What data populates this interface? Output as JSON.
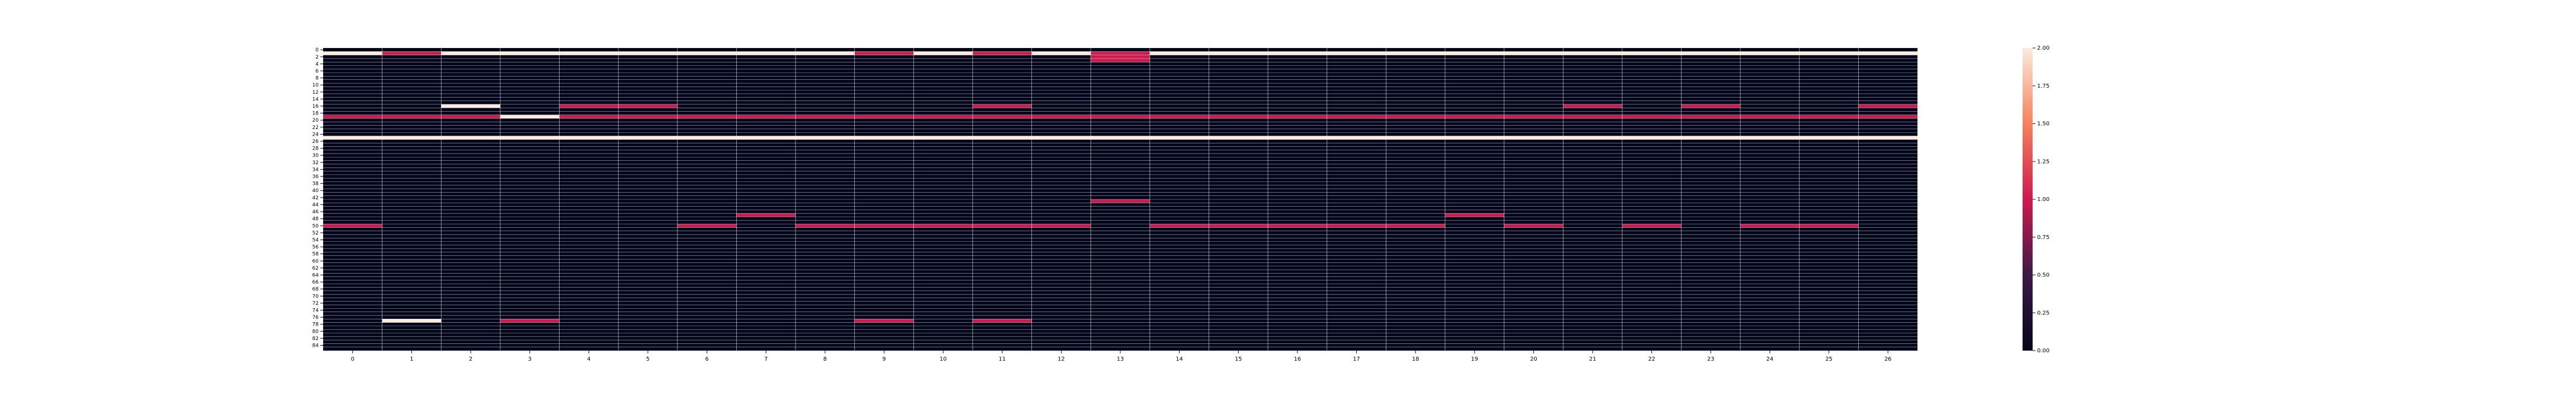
{
  "chart_data": {
    "type": "heatmap",
    "title": "",
    "xlabel": "",
    "ylabel": "",
    "grid": true,
    "legend": "colorbar-right",
    "x_categories": [
      "0",
      "1",
      "2",
      "3",
      "4",
      "5",
      "6",
      "7",
      "8",
      "9",
      "10",
      "11",
      "12",
      "13",
      "14",
      "15",
      "16",
      "17",
      "18",
      "19",
      "20",
      "21",
      "22",
      "23",
      "24",
      "25",
      "26"
    ],
    "y_tick_labels": [
      "0",
      "2",
      "4",
      "6",
      "8",
      "10",
      "12",
      "14",
      "16",
      "18",
      "20",
      "22",
      "24",
      "26",
      "28",
      "30",
      "32",
      "34",
      "36",
      "38",
      "40",
      "42",
      "44",
      "46",
      "48",
      "50",
      "52",
      "54",
      "56",
      "58",
      "60",
      "62",
      "64",
      "66",
      "68",
      "70",
      "72",
      "74",
      "76",
      "78",
      "80",
      "82",
      "84"
    ],
    "n_rows": 86,
    "vmin": 0,
    "vmax": 2,
    "colorbar_ticks": [
      "0.00",
      "0.25",
      "0.50",
      "0.75",
      "1.00",
      "1.25",
      "1.50",
      "1.75",
      "2.00"
    ],
    "colorbar_tick_values": [
      0,
      0.25,
      0.5,
      0.75,
      1.0,
      1.25,
      1.5,
      1.75,
      2.0
    ],
    "colors": {
      "low": "#03051a",
      "mid": "#cb1b4f",
      "high": "#faebdd",
      "grid": "#ffffff"
    },
    "cells": [
      {
        "row": 1,
        "cols": [
          0,
          2,
          3,
          4,
          5,
          6,
          7,
          8,
          10,
          12,
          14,
          15,
          16,
          17,
          18,
          19,
          20,
          21,
          22,
          23,
          24,
          25,
          26
        ],
        "value": 2
      },
      {
        "row": 1,
        "cols": [
          1,
          9,
          11,
          13
        ],
        "value": 1
      },
      {
        "row": 2,
        "cols": [
          13
        ],
        "value": 1
      },
      {
        "row": 3,
        "cols": [
          13
        ],
        "value": 1
      },
      {
        "row": 16,
        "cols": [
          2
        ],
        "value": 2
      },
      {
        "row": 16,
        "cols": [
          4,
          5,
          11,
          21,
          23,
          26
        ],
        "value": 1
      },
      {
        "row": 19,
        "cols": [
          0,
          1,
          2,
          4,
          5,
          6,
          7,
          8,
          9,
          10,
          11,
          12,
          13,
          14,
          15,
          16,
          17,
          18,
          19,
          20,
          21,
          22,
          23,
          24,
          25,
          26
        ],
        "value": 1
      },
      {
        "row": 19,
        "cols": [
          3
        ],
        "value": 2
      },
      {
        "row": 25,
        "cols": [
          0,
          1,
          2,
          3,
          4,
          5,
          6,
          7,
          8,
          9,
          10,
          11,
          12,
          13,
          14,
          15,
          16,
          17,
          18,
          19,
          20,
          21,
          22,
          23,
          24,
          25,
          26
        ],
        "value": 2
      },
      {
        "row": 43,
        "cols": [
          13
        ],
        "value": 1
      },
      {
        "row": 47,
        "cols": [
          7,
          19
        ],
        "value": 1
      },
      {
        "row": 50,
        "cols": [
          0,
          6,
          8,
          9,
          10,
          11,
          12,
          14,
          15,
          16,
          17,
          18,
          20,
          22,
          24,
          25
        ],
        "value": 1
      },
      {
        "row": 77,
        "cols": [
          1
        ],
        "value": 2
      },
      {
        "row": 77,
        "cols": [
          3,
          9,
          11
        ],
        "value": 1
      }
    ]
  }
}
